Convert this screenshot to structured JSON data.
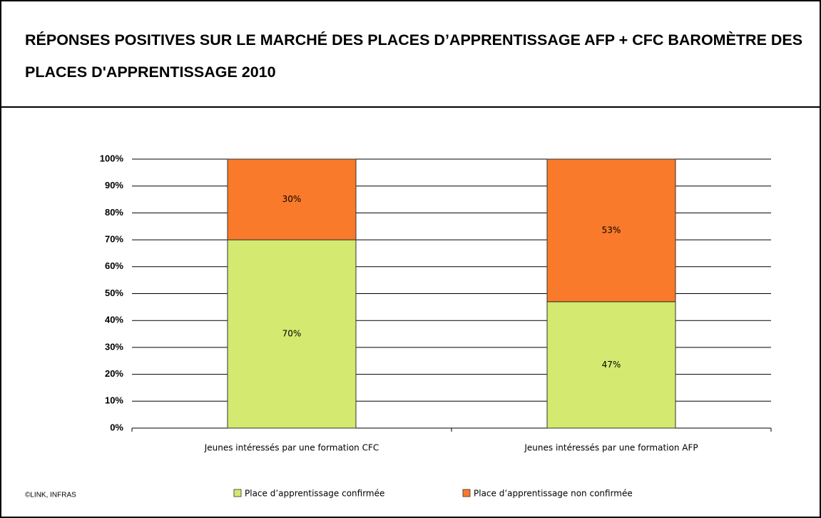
{
  "chart_data": {
    "type": "stacked_bar",
    "title": "RÉPONSES POSITIVES SUR LE MARCHÉ DES PLACES D’APPRENTISSAGE AFP + CFC BAROMÈTRE DES PLACES D'APPRENTISSAGE 2010",
    "categories": [
      "Jeunes intéressés par une formation CFC",
      "Jeunes intéressés par une formation AFP"
    ],
    "series": [
      {
        "name": "Place d’apprentissage confirmée",
        "color": "#d4e96f",
        "values": [
          70,
          47
        ],
        "value_labels": [
          "70%",
          "47%"
        ]
      },
      {
        "name": "Place d’apprentissage non confirmée",
        "color": "#f97a2a",
        "values": [
          30,
          53
        ],
        "value_labels": [
          "30%",
          "53%"
        ]
      }
    ],
    "ylim": [
      0,
      100
    ],
    "yticks": [
      {
        "value": 0,
        "label": "0%"
      },
      {
        "value": 10,
        "label": "10%"
      },
      {
        "value": 20,
        "label": "20%"
      },
      {
        "value": 30,
        "label": "30%"
      },
      {
        "value": 40,
        "label": "40%"
      },
      {
        "value": 50,
        "label": "50%"
      },
      {
        "value": 60,
        "label": "60%"
      },
      {
        "value": 70,
        "label": "70%"
      },
      {
        "value": 80,
        "label": "80%"
      },
      {
        "value": 90,
        "label": "90%"
      },
      {
        "value": 100,
        "label": "100%"
      }
    ],
    "grid": true,
    "legend": "bottom",
    "source": "©LINK, INFRAS"
  }
}
